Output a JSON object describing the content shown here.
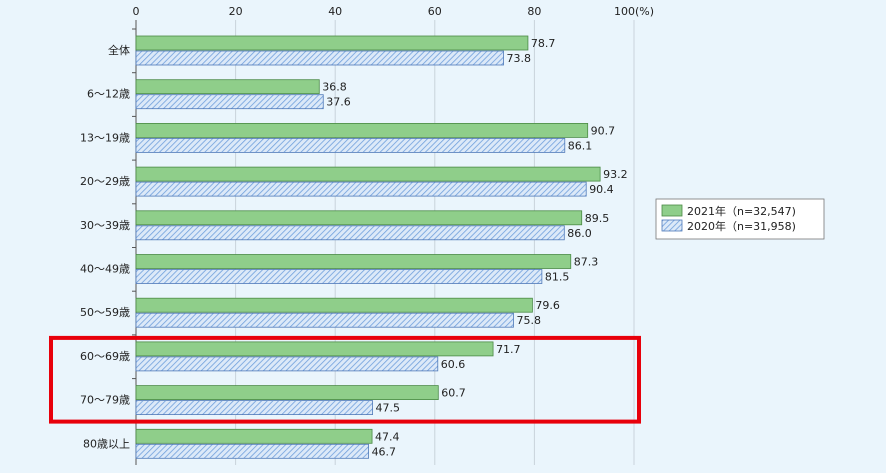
{
  "chart_data": {
    "type": "bar",
    "orientation": "horizontal",
    "categories": [
      "全体",
      "6～12歳",
      "13～19歳",
      "20～29歳",
      "30～39歳",
      "40～49歳",
      "50～59歳",
      "60～69歳",
      "70～79歳",
      "80歳以上"
    ],
    "series": [
      {
        "name": "2021年（n=32,547)",
        "values": [
          78.7,
          36.8,
          90.7,
          93.2,
          89.5,
          87.3,
          79.6,
          71.7,
          60.7,
          47.4
        ],
        "color": "#8fce8a",
        "pattern": "solid"
      },
      {
        "name": "2020年（n=31,958)",
        "values": [
          73.8,
          37.6,
          86.1,
          90.4,
          86.0,
          81.5,
          75.8,
          60.6,
          47.5,
          46.7
        ],
        "color": "#a9c7ee",
        "pattern": "hatched"
      }
    ],
    "value_labels": [
      [
        "78.7",
        "36.8",
        "90.7",
        "93.2",
        "89.5",
        "87.3",
        "79.6",
        "71.7",
        "60.7",
        "47.4"
      ],
      [
        "73.8",
        "37.6",
        "86.1",
        "90.4",
        "86.0",
        "81.5",
        "75.8",
        "60.6",
        "47.5",
        "46.7"
      ]
    ],
    "xlim": [
      0,
      100
    ],
    "xticks": [
      "0",
      "20",
      "40",
      "60",
      "80",
      "100(%)"
    ],
    "xtick_values": [
      0,
      20,
      40,
      60,
      80,
      100
    ],
    "grid": true,
    "legend_position": "right",
    "highlight": {
      "categories": [
        "60～69歳",
        "70～79歳"
      ],
      "color": "#e8000b"
    }
  }
}
